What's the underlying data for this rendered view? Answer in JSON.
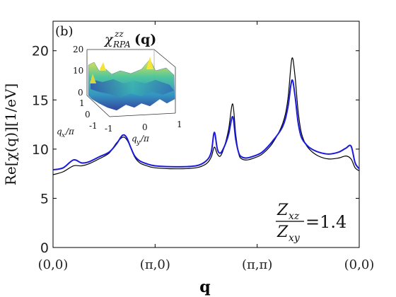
{
  "chart_data": {
    "type": "line",
    "panel_label": "(b)",
    "xlabel": "q",
    "ylabel": "Re[χ(q)][1/eV]",
    "ylim": [
      0,
      23
    ],
    "yticks": [
      "0",
      "5",
      "10",
      "15",
      "20"
    ],
    "xticks": [
      "(0,0)",
      "(π,0)",
      "(π,π)",
      "(0,0)"
    ],
    "xticks_pos": [
      0,
      1,
      2,
      3
    ],
    "xlim": [
      0,
      3
    ],
    "annotation": {
      "numerator": "Z",
      "numerator_sub": "xz",
      "denominator": "Z",
      "denominator_sub": "xy",
      "equals": "=1.4"
    },
    "series": [
      {
        "color": "#000000",
        "x": [
          0,
          0.1,
          0.2,
          0.28,
          0.35,
          0.45,
          0.55,
          0.62,
          0.68,
          0.72,
          0.76,
          0.8,
          0.85,
          0.92,
          1.0,
          1.2,
          1.4,
          1.5,
          1.55,
          1.58,
          1.61,
          1.64,
          1.68,
          1.72,
          1.76,
          1.79,
          1.82,
          1.85,
          1.9,
          1.97,
          2.05,
          2.15,
          2.25,
          2.3,
          2.34,
          2.37,
          2.4,
          2.43,
          2.47,
          2.52,
          2.6,
          2.7,
          2.8,
          2.87,
          2.92,
          2.96,
          3.0
        ],
        "y": [
          7.4,
          7.7,
          8.3,
          8.3,
          8.5,
          9.0,
          9.6,
          10.6,
          11.2,
          11.0,
          10.2,
          9.2,
          8.6,
          8.3,
          8.1,
          8.0,
          8.1,
          8.5,
          9.2,
          10.2,
          9.5,
          9.3,
          10.3,
          12.0,
          14.6,
          11.5,
          9.5,
          9.0,
          8.9,
          9.1,
          9.5,
          10.6,
          12.6,
          15.0,
          19.2,
          17.5,
          14.0,
          11.8,
          10.6,
          9.9,
          9.3,
          9.0,
          9.1,
          9.3,
          9.0,
          8.1,
          7.8
        ]
      },
      {
        "color": "#1a1adb",
        "x": [
          0,
          0.1,
          0.2,
          0.28,
          0.35,
          0.45,
          0.55,
          0.62,
          0.68,
          0.72,
          0.76,
          0.8,
          0.85,
          0.92,
          1.0,
          1.2,
          1.4,
          1.5,
          1.55,
          1.58,
          1.61,
          1.64,
          1.68,
          1.72,
          1.76,
          1.79,
          1.82,
          1.85,
          1.9,
          1.97,
          2.05,
          2.15,
          2.25,
          2.3,
          2.34,
          2.37,
          2.4,
          2.43,
          2.47,
          2.52,
          2.6,
          2.7,
          2.8,
          2.87,
          2.92,
          2.96,
          3.0
        ],
        "y": [
          7.9,
          8.1,
          8.9,
          8.6,
          8.7,
          9.2,
          9.7,
          10.5,
          11.4,
          11.2,
          10.2,
          9.3,
          8.8,
          8.5,
          8.3,
          8.2,
          8.3,
          8.8,
          9.7,
          11.7,
          10.0,
          9.6,
          10.3,
          11.5,
          13.3,
          11.0,
          9.6,
          9.2,
          9.1,
          9.3,
          9.7,
          10.8,
          12.3,
          14.2,
          17.0,
          15.5,
          12.8,
          11.3,
          10.6,
          10.1,
          9.7,
          9.5,
          9.7,
          10.1,
          10.3,
          8.6,
          8.0
        ]
      }
    ],
    "inset": {
      "title": "χ",
      "title_sup": "zz",
      "title_sub": "RPA",
      "title_arg": "(q)",
      "zticks": [
        "0",
        "10",
        "20"
      ],
      "xaxis_ticks": [
        "1",
        "0",
        "-1"
      ],
      "yaxis_ticks": [
        "-1",
        "0",
        "1"
      ],
      "xlabel": "q",
      "xlabel_sub": "x",
      "xlabel_div": "/π",
      "ylabel": "q",
      "ylabel_sub": "y",
      "ylabel_div": "/π"
    }
  }
}
